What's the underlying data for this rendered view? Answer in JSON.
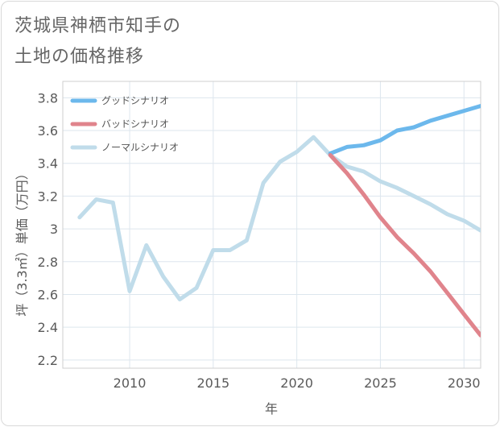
{
  "title_line1": "茨城県神栖市知手の",
  "title_line2": "土地の価格推移",
  "chart_data": {
    "type": "line",
    "title": "茨城県神栖市知手の土地の価格推移",
    "xlabel": "年",
    "ylabel": "坪（3.3㎡）単価（万円）",
    "xlim": [
      2006,
      2031
    ],
    "ylim": [
      2.15,
      3.9
    ],
    "xticks": [
      2010,
      2015,
      2020,
      2025,
      2030
    ],
    "xtick_labels": [
      "2010",
      "2015",
      "2020",
      "2025",
      "2030"
    ],
    "yticks": [
      2.2,
      2.4,
      2.6,
      2.8,
      3.0,
      3.2,
      3.4,
      3.6,
      3.8
    ],
    "ytick_labels": [
      "2.2",
      "2.4",
      "2.6",
      "2.8",
      "3",
      "3.2",
      "3.4",
      "3.6",
      "3.8"
    ],
    "grid": true,
    "legend_position": "top-left",
    "series": [
      {
        "name": "グッドシナリオ",
        "color": "#6cb8ec",
        "x": [
          2022,
          2023,
          2024,
          2025,
          2026,
          2027,
          2028,
          2029,
          2030,
          2031
        ],
        "y": [
          3.46,
          3.5,
          3.51,
          3.54,
          3.6,
          3.62,
          3.66,
          3.69,
          3.72,
          3.75
        ]
      },
      {
        "name": "バッドシナリオ",
        "color": "#e0848c",
        "x": [
          2022,
          2023,
          2024,
          2025,
          2026,
          2027,
          2028,
          2029,
          2030,
          2031
        ],
        "y": [
          3.45,
          3.34,
          3.21,
          3.07,
          2.95,
          2.85,
          2.74,
          2.61,
          2.48,
          2.35
        ]
      },
      {
        "name": "ノーマルシナリオ",
        "color": "#c0dcea",
        "x": [
          2007,
          2008,
          2009,
          2010,
          2011,
          2012,
          2013,
          2014,
          2015,
          2016,
          2017,
          2018,
          2019,
          2020,
          2021,
          2022,
          2023,
          2024,
          2025,
          2026,
          2027,
          2028,
          2029,
          2030,
          2031
        ],
        "y": [
          3.07,
          3.18,
          3.16,
          2.62,
          2.9,
          2.71,
          2.57,
          2.64,
          2.87,
          2.87,
          2.93,
          3.28,
          3.41,
          3.47,
          3.56,
          3.45,
          3.38,
          3.35,
          3.29,
          3.25,
          3.2,
          3.15,
          3.09,
          3.05,
          2.99
        ]
      }
    ]
  }
}
